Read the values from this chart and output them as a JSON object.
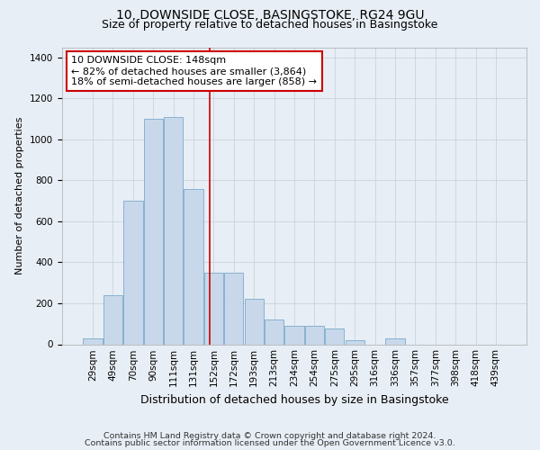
{
  "title": "10, DOWNSIDE CLOSE, BASINGSTOKE, RG24 9GU",
  "subtitle": "Size of property relative to detached houses in Basingstoke",
  "xlabel": "Distribution of detached houses by size in Basingstoke",
  "ylabel": "Number of detached properties",
  "footnote1": "Contains HM Land Registry data © Crown copyright and database right 2024.",
  "footnote2": "Contains public sector information licensed under the Open Government Licence v3.0.",
  "bar_labels": [
    "29sqm",
    "49sqm",
    "70sqm",
    "90sqm",
    "111sqm",
    "131sqm",
    "152sqm",
    "172sqm",
    "193sqm",
    "213sqm",
    "234sqm",
    "254sqm",
    "275sqm",
    "295sqm",
    "316sqm",
    "336sqm",
    "357sqm",
    "377sqm",
    "398sqm",
    "418sqm",
    "439sqm"
  ],
  "bar_values": [
    28,
    240,
    700,
    1100,
    1110,
    760,
    350,
    350,
    220,
    120,
    90,
    90,
    75,
    20,
    0,
    28,
    0,
    0,
    0,
    0,
    0
  ],
  "bar_color": "#c8d8ea",
  "bar_edgecolor": "#7aaaca",
  "red_line_x": 5.82,
  "annotation_text": "10 DOWNSIDE CLOSE: 148sqm\n← 82% of detached houses are smaller (3,864)\n18% of semi-detached houses are larger (858) →",
  "annotation_box_color": "#ffffff",
  "annotation_box_edgecolor": "#cc0000",
  "red_line_color": "#cc0000",
  "grid_color": "#c8d4de",
  "bg_color": "#e8eef5",
  "ylim": [
    0,
    1450
  ],
  "yticks": [
    0,
    200,
    400,
    600,
    800,
    1000,
    1200,
    1400
  ],
  "title_fontsize": 10,
  "subtitle_fontsize": 9,
  "xlabel_fontsize": 9,
  "ylabel_fontsize": 8,
  "tick_fontsize": 7.5,
  "annotation_fontsize": 8,
  "footnote_fontsize": 6.8
}
